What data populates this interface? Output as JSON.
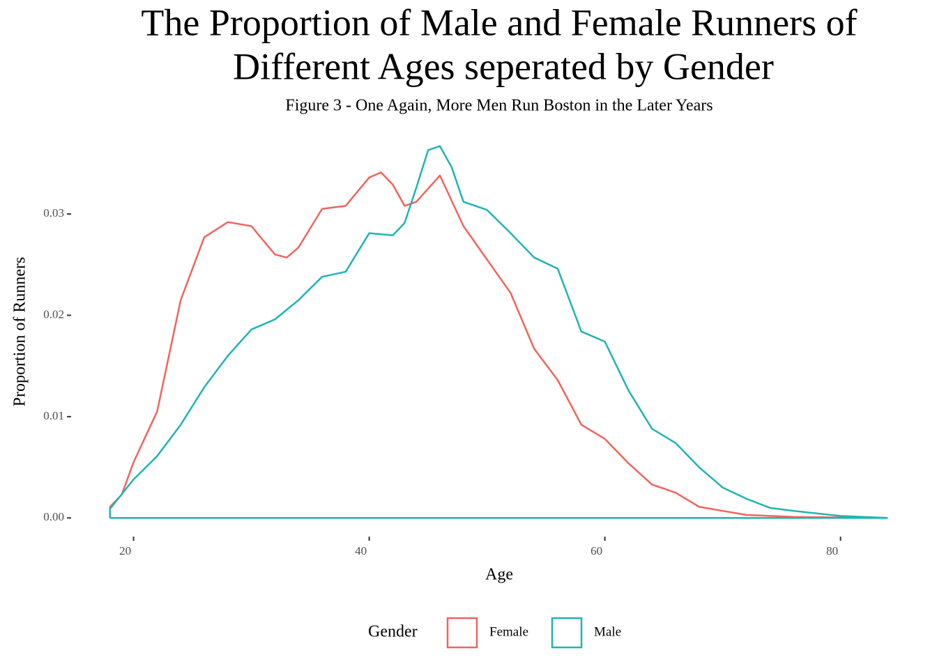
{
  "chart_data": {
    "type": "line",
    "title": [
      "The Proportion of Male and Female Runners of",
      "Different Ages seperated by Gender"
    ],
    "subtitle": "Figure 3 - One Again, More Men Run Boston in the Later Years",
    "x_label": "Age",
    "y_label": "Proportion of Runners",
    "legend_title": "Gender",
    "legend_position": "bottom",
    "grid": false,
    "xlim": [
      14.7,
      87.3
    ],
    "ylim": [
      -0.00184,
      0.0386
    ],
    "xticks": [
      20,
      40,
      60,
      80
    ],
    "yticks": [
      {
        "value": 0,
        "label": "0.00"
      },
      0.01,
      0.02,
      0.03
    ],
    "series": [
      {
        "name": "Female",
        "color": "#f0645c",
        "x": [
          18,
          19,
          20,
          22,
          24,
          26,
          28,
          30,
          32,
          33,
          34,
          36,
          38,
          40,
          41,
          42,
          43,
          44,
          46,
          48,
          50,
          52,
          54,
          56,
          58,
          60,
          62,
          64,
          66,
          68,
          70,
          72,
          76,
          80,
          84
        ],
        "values": [
          0.0011,
          0.0023,
          0.0055,
          0.0105,
          0.0215,
          0.0277,
          0.0292,
          0.0288,
          0.026,
          0.0257,
          0.0267,
          0.0305,
          0.0308,
          0.0336,
          0.0341,
          0.0329,
          0.0308,
          0.0312,
          0.0338,
          0.0288,
          0.0255,
          0.0222,
          0.0167,
          0.0136,
          0.0092,
          0.0078,
          0.0054,
          0.0033,
          0.0025,
          0.0011,
          0.0007,
          0.0003,
          0.0001,
          5e-05,
          0
        ]
      },
      {
        "name": "Male",
        "color": "#1fb3b6",
        "x": [
          18,
          20,
          22,
          24,
          26,
          28,
          30,
          32,
          34,
          36,
          38,
          40,
          42,
          43,
          44,
          45,
          46,
          47,
          48,
          50,
          52,
          54,
          56,
          58,
          60,
          62,
          64,
          66,
          68,
          70,
          72,
          74,
          76,
          80,
          84
        ],
        "values": [
          0.0009,
          0.0038,
          0.0061,
          0.0092,
          0.0129,
          0.016,
          0.0186,
          0.0196,
          0.0215,
          0.0238,
          0.0243,
          0.0281,
          0.0279,
          0.0291,
          0.0326,
          0.0363,
          0.0367,
          0.0346,
          0.0312,
          0.0304,
          0.0281,
          0.0257,
          0.0246,
          0.0184,
          0.0174,
          0.0126,
          0.0088,
          0.0074,
          0.005,
          0.003,
          0.0019,
          0.001,
          0.0007,
          0.0002,
          0
        ]
      }
    ]
  }
}
